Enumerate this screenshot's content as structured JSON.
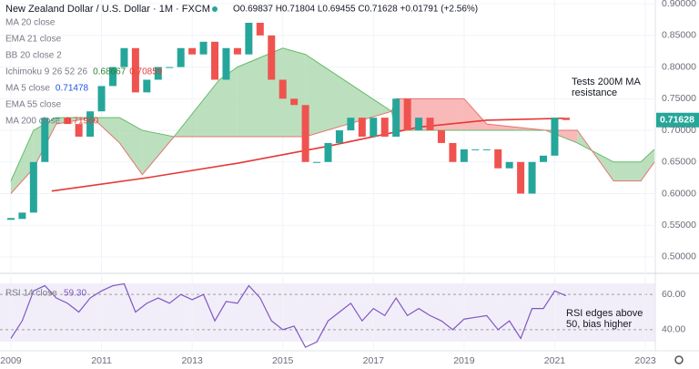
{
  "chart_data": [
    {
      "type": "candlestick",
      "title": "New Zealand Dollar / U.S. Dollar · 1M · FXCM",
      "ohlc_label": "O0.69837 H0.71804 L0.69455 C0.71628 +0.01791 (+2.56%)",
      "legend": [
        {
          "name": "MA 20 close"
        },
        {
          "name": "EMA 21 close"
        },
        {
          "name": "BB 20 close 2"
        },
        {
          "name": "Ichimoku 9 26 52 26",
          "values": [
            "0.68667",
            "0.70859"
          ]
        },
        {
          "name": "MA 5 close",
          "values": [
            "0.71478"
          ]
        },
        {
          "name": "EMA 55 close"
        },
        {
          "name": "MA 200 close",
          "values": [
            "0.71960"
          ]
        }
      ],
      "annotation": [
        "Tests 200M MA",
        "resistance"
      ],
      "x": [
        2009.0,
        2009.25,
        2009.5,
        2009.75,
        2010.0,
        2010.25,
        2010.5,
        2010.75,
        2011.0,
        2011.25,
        2011.5,
        2011.75,
        2012.0,
        2012.25,
        2012.5,
        2012.75,
        2013.0,
        2013.25,
        2013.5,
        2013.75,
        2014.0,
        2014.25,
        2014.5,
        2014.75,
        2015.0,
        2015.25,
        2015.5,
        2015.75,
        2016.0,
        2016.25,
        2016.5,
        2016.75,
        2017.0,
        2017.25,
        2017.5,
        2017.75,
        2018.0,
        2018.25,
        2018.5,
        2018.75,
        2019.0,
        2019.25,
        2019.5,
        2019.75,
        2020.0,
        2020.25,
        2020.5,
        2020.75,
        2021.0,
        2021.25
      ],
      "close": [
        0.56,
        0.57,
        0.65,
        0.72,
        0.72,
        0.71,
        0.69,
        0.73,
        0.77,
        0.8,
        0.83,
        0.76,
        0.78,
        0.8,
        0.8,
        0.83,
        0.82,
        0.84,
        0.78,
        0.83,
        0.82,
        0.87,
        0.85,
        0.78,
        0.75,
        0.74,
        0.65,
        0.65,
        0.68,
        0.7,
        0.72,
        0.69,
        0.72,
        0.69,
        0.75,
        0.7,
        0.72,
        0.7,
        0.68,
        0.65,
        0.67,
        0.67,
        0.67,
        0.64,
        0.65,
        0.6,
        0.65,
        0.66,
        0.72,
        0.71628
      ],
      "ma200": {
        "x": [
          2009.9,
          2012,
          2014,
          2016,
          2018,
          2019.5,
          2021.2
        ],
        "values": [
          0.604,
          0.625,
          0.648,
          0.675,
          0.705,
          0.716,
          0.719
        ],
        "color": "#e53935"
      },
      "cloud": {
        "x": [
          2009.0,
          2009.5,
          2010.0,
          2010.8,
          2011.4,
          2011.9,
          2012.6,
          2013.6,
          2014.0,
          2015.0,
          2015.5,
          2017.4,
          2017.5,
          2019.0,
          2019.5,
          2020.8,
          2021.5,
          2022.3,
          2022.9,
          2023.2
        ],
        "span_a": [
          0.62,
          0.7,
          0.72,
          0.72,
          0.72,
          0.7,
          0.69,
          0.78,
          0.8,
          0.83,
          0.82,
          0.73,
          0.7,
          0.7,
          0.7,
          0.7,
          0.68,
          0.65,
          0.65,
          0.67
        ],
        "span_b": [
          0.6,
          0.64,
          0.71,
          0.72,
          0.68,
          0.63,
          0.69,
          0.69,
          0.69,
          0.69,
          0.69,
          0.73,
          0.75,
          0.75,
          0.71,
          0.7,
          0.7,
          0.62,
          0.62,
          0.65
        ]
      },
      "up_color": "#26a69a",
      "down_color": "#ef5350",
      "xlim": [
        2008.76,
        2023.22
      ],
      "xticks": [
        2009,
        2011,
        2013,
        2015,
        2017,
        2019,
        2021,
        2023
      ],
      "ylim": [
        0.474,
        0.906
      ],
      "yticks": [
        {
          "value": 0.9,
          "label": "0.90000"
        },
        {
          "value": 0.85,
          "label": "0.85000"
        },
        {
          "value": 0.8,
          "label": "0.80000"
        },
        {
          "value": 0.75,
          "label": "0.75000"
        },
        {
          "value": 0.7,
          "label": "0.70000"
        },
        {
          "value": 0.65,
          "label": "0.65000"
        },
        {
          "value": 0.6,
          "label": "0.60000"
        },
        {
          "value": 0.55,
          "label": "0.55000"
        },
        {
          "value": 0.5,
          "label": "0.50000"
        }
      ]
    },
    {
      "type": "line",
      "title": "RSI 14 close",
      "last_label": "59.30",
      "annotation": [
        "RSI edges above",
        "50, bias higher"
      ],
      "x": [
        2009.0,
        2009.25,
        2009.5,
        2009.75,
        2010.0,
        2010.25,
        2010.5,
        2010.75,
        2011.0,
        2011.25,
        2011.5,
        2011.75,
        2012.0,
        2012.25,
        2012.5,
        2012.75,
        2013.0,
        2013.25,
        2013.5,
        2013.75,
        2014.0,
        2014.25,
        2014.5,
        2014.75,
        2015.0,
        2015.25,
        2015.5,
        2015.75,
        2016.0,
        2016.25,
        2016.5,
        2016.75,
        2017.0,
        2017.25,
        2017.5,
        2017.75,
        2018.0,
        2018.25,
        2018.5,
        2018.75,
        2019.0,
        2019.25,
        2019.5,
        2019.75,
        2020.0,
        2020.25,
        2020.5,
        2020.75,
        2021.0,
        2021.25
      ],
      "values": [
        35,
        45,
        62,
        65,
        58,
        55,
        50,
        58,
        62,
        65,
        66,
        50,
        55,
        58,
        55,
        60,
        57,
        60,
        45,
        56,
        55,
        65,
        58,
        45,
        40,
        42,
        30,
        33,
        45,
        50,
        55,
        45,
        52,
        48,
        58,
        48,
        52,
        48,
        45,
        40,
        46,
        47,
        48,
        40,
        45,
        35,
        52,
        52,
        62,
        59.3
      ],
      "color": "#7e57c2",
      "xlim": [
        2008.76,
        2023.22
      ],
      "ylim": [
        28,
        72
      ],
      "yticks": [
        {
          "value": 60,
          "label": "60.00"
        },
        {
          "value": 40,
          "label": "40.00"
        }
      ]
    }
  ]
}
